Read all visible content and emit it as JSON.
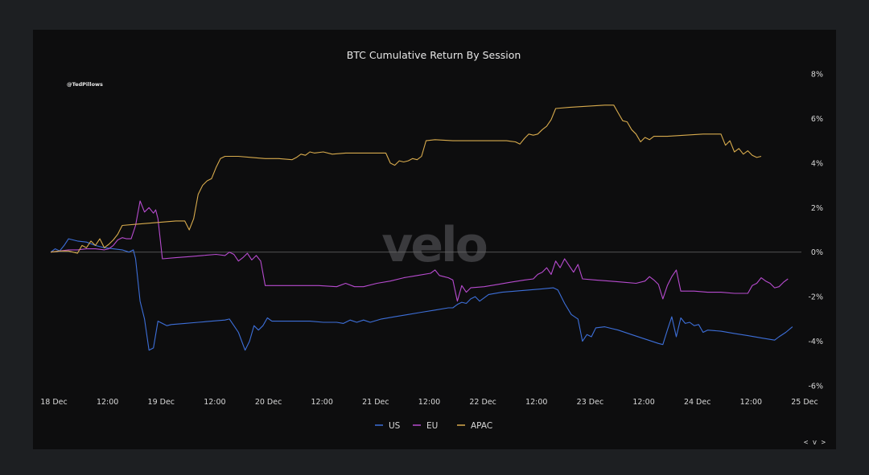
{
  "watermark": "velo",
  "handle": "@TedPillows",
  "nav_label": "< v >",
  "chart_data": {
    "type": "line",
    "title": "BTC Cumulative Return By Session",
    "xlabel": "",
    "ylabel": "",
    "x_unit": "hours from 18 Dec 00:00",
    "xlim": [
      0,
      168
    ],
    "ylim": [
      -6,
      8
    ],
    "y_ticks": [
      -6,
      -4,
      -2,
      0,
      2,
      4,
      6,
      8
    ],
    "y_tick_labels": [
      "-6%",
      "-4%",
      "-2%",
      "0%",
      "2%",
      "4%",
      "6%",
      "8%"
    ],
    "x_ticks": [
      0,
      12,
      24,
      36,
      48,
      60,
      72,
      84,
      96,
      108,
      120,
      132,
      144,
      156,
      168
    ],
    "x_tick_labels": [
      "18 Dec",
      "12:00",
      "19 Dec",
      "12:00",
      "20 Dec",
      "12:00",
      "21 Dec",
      "12:00",
      "22 Dec",
      "12:00",
      "23 Dec",
      "12:00",
      "24 Dec",
      "12:00",
      "25 Dec"
    ],
    "zero_line": true,
    "grid": false,
    "legend_position": "bottom",
    "series": [
      {
        "name": "US",
        "color": "#3d6fd9",
        "points": [
          [
            0,
            0
          ],
          [
            1,
            0.15
          ],
          [
            1.5,
            0.1
          ],
          [
            2,
            0.05
          ],
          [
            3,
            0.3
          ],
          [
            4,
            0.6
          ],
          [
            6,
            0.5
          ],
          [
            8,
            0.45
          ],
          [
            10,
            0.3
          ],
          [
            12,
            0.2
          ],
          [
            14,
            0.15
          ],
          [
            16,
            0.1
          ],
          [
            17.5,
            0
          ],
          [
            18.5,
            0.1
          ],
          [
            19,
            -0.3
          ],
          [
            20,
            -2.2
          ],
          [
            21,
            -3.0
          ],
          [
            22,
            -4.4
          ],
          [
            23,
            -4.3
          ],
          [
            24,
            -3.1
          ],
          [
            25,
            -3.2
          ],
          [
            26,
            -3.3
          ],
          [
            27,
            -3.25
          ],
          [
            30,
            -3.2
          ],
          [
            33,
            -3.15
          ],
          [
            36,
            -3.1
          ],
          [
            39,
            -3.05
          ],
          [
            40,
            -3.0
          ],
          [
            41,
            -3.3
          ],
          [
            42,
            -3.6
          ],
          [
            43.5,
            -4.4
          ],
          [
            44.5,
            -4.0
          ],
          [
            45.5,
            -3.3
          ],
          [
            46.5,
            -3.5
          ],
          [
            47.5,
            -3.3
          ],
          [
            48.5,
            -2.95
          ],
          [
            49.5,
            -3.1
          ],
          [
            52,
            -3.1
          ],
          [
            55,
            -3.1
          ],
          [
            58,
            -3.1
          ],
          [
            61,
            -3.15
          ],
          [
            64,
            -3.15
          ],
          [
            65.5,
            -3.2
          ],
          [
            67,
            -3.05
          ],
          [
            68.5,
            -3.15
          ],
          [
            70,
            -3.05
          ],
          [
            71.5,
            -3.15
          ],
          [
            74,
            -3.0
          ],
          [
            77,
            -2.9
          ],
          [
            80,
            -2.8
          ],
          [
            83,
            -2.7
          ],
          [
            86,
            -2.6
          ],
          [
            89,
            -2.5
          ],
          [
            90,
            -2.5
          ],
          [
            91,
            -2.35
          ],
          [
            92,
            -2.25
          ],
          [
            93,
            -2.3
          ],
          [
            94,
            -2.1
          ],
          [
            95,
            -2.0
          ],
          [
            96,
            -2.2
          ],
          [
            98,
            -1.9
          ],
          [
            101,
            -1.8
          ],
          [
            104,
            -1.75
          ],
          [
            107,
            -1.7
          ],
          [
            110,
            -1.65
          ],
          [
            112.5,
            -1.6
          ],
          [
            113.5,
            -1.7
          ],
          [
            115,
            -2.3
          ],
          [
            116.5,
            -2.8
          ],
          [
            118,
            -3.0
          ],
          [
            119,
            -4.0
          ],
          [
            120,
            -3.7
          ],
          [
            121,
            -3.8
          ],
          [
            122,
            -3.4
          ],
          [
            124,
            -3.35
          ],
          [
            127,
            -3.5
          ],
          [
            130,
            -3.7
          ],
          [
            133,
            -3.9
          ],
          [
            136,
            -4.1
          ],
          [
            137,
            -4.15
          ],
          [
            138,
            -3.5
          ],
          [
            139,
            -2.9
          ],
          [
            140,
            -3.8
          ],
          [
            141,
            -2.95
          ],
          [
            142,
            -3.2
          ],
          [
            143,
            -3.15
          ],
          [
            144,
            -3.3
          ],
          [
            145,
            -3.25
          ],
          [
            146,
            -3.6
          ],
          [
            147,
            -3.5
          ],
          [
            150,
            -3.55
          ],
          [
            153,
            -3.65
          ],
          [
            156,
            -3.75
          ],
          [
            159,
            -3.85
          ],
          [
            162,
            -3.95
          ],
          [
            163,
            -3.8
          ],
          [
            164.5,
            -3.6
          ],
          [
            166,
            -3.35
          ]
        ]
      },
      {
        "name": "EU",
        "color": "#b74bcf",
        "points": [
          [
            0,
            0
          ],
          [
            2,
            0.05
          ],
          [
            4,
            0.1
          ],
          [
            6,
            0.1
          ],
          [
            8,
            0.15
          ],
          [
            10,
            0.15
          ],
          [
            12,
            0.1
          ],
          [
            13,
            0.15
          ],
          [
            14,
            0.3
          ],
          [
            15,
            0.55
          ],
          [
            16,
            0.65
          ],
          [
            17,
            0.6
          ],
          [
            18,
            0.6
          ],
          [
            19,
            1.2
          ],
          [
            20,
            2.3
          ],
          [
            21,
            1.8
          ],
          [
            22,
            2.0
          ],
          [
            23,
            1.75
          ],
          [
            23.5,
            1.9
          ],
          [
            24,
            1.5
          ],
          [
            25,
            -0.3
          ],
          [
            28,
            -0.25
          ],
          [
            31,
            -0.2
          ],
          [
            34,
            -0.15
          ],
          [
            37,
            -0.1
          ],
          [
            39,
            -0.15
          ],
          [
            40,
            0.0
          ],
          [
            41,
            -0.1
          ],
          [
            42,
            -0.4
          ],
          [
            43,
            -0.25
          ],
          [
            44,
            -0.05
          ],
          [
            45,
            -0.35
          ],
          [
            46,
            -0.15
          ],
          [
            47,
            -0.4
          ],
          [
            48,
            -1.5
          ],
          [
            52,
            -1.5
          ],
          [
            56,
            -1.5
          ],
          [
            60,
            -1.5
          ],
          [
            64,
            -1.55
          ],
          [
            66,
            -1.4
          ],
          [
            68,
            -1.55
          ],
          [
            70,
            -1.55
          ],
          [
            73,
            -1.4
          ],
          [
            76,
            -1.3
          ],
          [
            79,
            -1.15
          ],
          [
            82,
            -1.05
          ],
          [
            85,
            -0.95
          ],
          [
            86,
            -0.8
          ],
          [
            87,
            -1.05
          ],
          [
            88,
            -1.1
          ],
          [
            89,
            -1.15
          ],
          [
            90,
            -1.25
          ],
          [
            91,
            -2.2
          ],
          [
            92,
            -1.5
          ],
          [
            93,
            -1.8
          ],
          [
            94,
            -1.6
          ],
          [
            97,
            -1.55
          ],
          [
            100,
            -1.45
          ],
          [
            103,
            -1.35
          ],
          [
            106,
            -1.25
          ],
          [
            108,
            -1.2
          ],
          [
            109,
            -1.0
          ],
          [
            110,
            -0.9
          ],
          [
            111,
            -0.7
          ],
          [
            112,
            -1.0
          ],
          [
            113,
            -0.4
          ],
          [
            114,
            -0.7
          ],
          [
            115,
            -0.3
          ],
          [
            116,
            -0.6
          ],
          [
            117,
            -0.9
          ],
          [
            118,
            -0.55
          ],
          [
            119,
            -1.2
          ],
          [
            122,
            -1.25
          ],
          [
            125,
            -1.3
          ],
          [
            128,
            -1.35
          ],
          [
            131,
            -1.4
          ],
          [
            133,
            -1.3
          ],
          [
            134,
            -1.1
          ],
          [
            135,
            -1.25
          ],
          [
            136,
            -1.45
          ],
          [
            137,
            -2.1
          ],
          [
            138,
            -1.5
          ],
          [
            139,
            -1.1
          ],
          [
            140,
            -0.8
          ],
          [
            141,
            -1.75
          ],
          [
            144,
            -1.75
          ],
          [
            147,
            -1.8
          ],
          [
            150,
            -1.8
          ],
          [
            153,
            -1.85
          ],
          [
            156,
            -1.85
          ],
          [
            157,
            -1.5
          ],
          [
            158,
            -1.4
          ],
          [
            159,
            -1.15
          ],
          [
            160,
            -1.3
          ],
          [
            161,
            -1.4
          ],
          [
            162,
            -1.6
          ],
          [
            163,
            -1.55
          ],
          [
            164,
            -1.35
          ],
          [
            165,
            -1.2
          ]
        ]
      },
      {
        "name": "APAC",
        "color": "#d8ab4d",
        "points": [
          [
            0,
            0
          ],
          [
            2,
            0.05
          ],
          [
            3,
            0.05
          ],
          [
            4,
            0.05
          ],
          [
            5,
            0
          ],
          [
            6,
            -0.05
          ],
          [
            7,
            0.3
          ],
          [
            8,
            0.2
          ],
          [
            9,
            0.5
          ],
          [
            10,
            0.3
          ],
          [
            11,
            0.6
          ],
          [
            12,
            0.2
          ],
          [
            13,
            0.35
          ],
          [
            14,
            0.55
          ],
          [
            15,
            0.8
          ],
          [
            16,
            1.2
          ],
          [
            19,
            1.25
          ],
          [
            22,
            1.3
          ],
          [
            25,
            1.35
          ],
          [
            28,
            1.4
          ],
          [
            30,
            1.4
          ],
          [
            31,
            1.0
          ],
          [
            32,
            1.5
          ],
          [
            33,
            2.6
          ],
          [
            34,
            3.0
          ],
          [
            35,
            3.2
          ],
          [
            36,
            3.3
          ],
          [
            37,
            3.8
          ],
          [
            38,
            4.2
          ],
          [
            39,
            4.3
          ],
          [
            42,
            4.3
          ],
          [
            45,
            4.25
          ],
          [
            48,
            4.2
          ],
          [
            51,
            4.2
          ],
          [
            54,
            4.15
          ],
          [
            55,
            4.25
          ],
          [
            56,
            4.4
          ],
          [
            57,
            4.35
          ],
          [
            58,
            4.5
          ],
          [
            59,
            4.45
          ],
          [
            61,
            4.5
          ],
          [
            63,
            4.4
          ],
          [
            66,
            4.45
          ],
          [
            69,
            4.45
          ],
          [
            72,
            4.45
          ],
          [
            75,
            4.45
          ],
          [
            76,
            4.0
          ],
          [
            77,
            3.9
          ],
          [
            78,
            4.1
          ],
          [
            79,
            4.05
          ],
          [
            80,
            4.1
          ],
          [
            81,
            4.2
          ],
          [
            82,
            4.15
          ],
          [
            83,
            4.3
          ],
          [
            84,
            5.0
          ],
          [
            86,
            5.05
          ],
          [
            90,
            5.0
          ],
          [
            94,
            5.0
          ],
          [
            98,
            5.0
          ],
          [
            102,
            5.0
          ],
          [
            104,
            4.95
          ],
          [
            105,
            4.85
          ],
          [
            106,
            5.1
          ],
          [
            107,
            5.3
          ],
          [
            108,
            5.25
          ],
          [
            109,
            5.3
          ],
          [
            110,
            5.5
          ],
          [
            111,
            5.65
          ],
          [
            112,
            5.95
          ],
          [
            113,
            6.45
          ],
          [
            116,
            6.5
          ],
          [
            120,
            6.55
          ],
          [
            124,
            6.6
          ],
          [
            126,
            6.6
          ],
          [
            127,
            6.25
          ],
          [
            128,
            5.9
          ],
          [
            129,
            5.85
          ],
          [
            130,
            5.5
          ],
          [
            131,
            5.3
          ],
          [
            132,
            4.95
          ],
          [
            133,
            5.15
          ],
          [
            134,
            5.05
          ],
          [
            135,
            5.2
          ],
          [
            138,
            5.2
          ],
          [
            142,
            5.25
          ],
          [
            146,
            5.3
          ],
          [
            150,
            5.3
          ],
          [
            151,
            4.8
          ],
          [
            152,
            5.0
          ],
          [
            153,
            4.5
          ],
          [
            154,
            4.65
          ],
          [
            155,
            4.4
          ],
          [
            156,
            4.55
          ],
          [
            157,
            4.35
          ],
          [
            158,
            4.25
          ],
          [
            159,
            4.3
          ]
        ]
      }
    ]
  }
}
